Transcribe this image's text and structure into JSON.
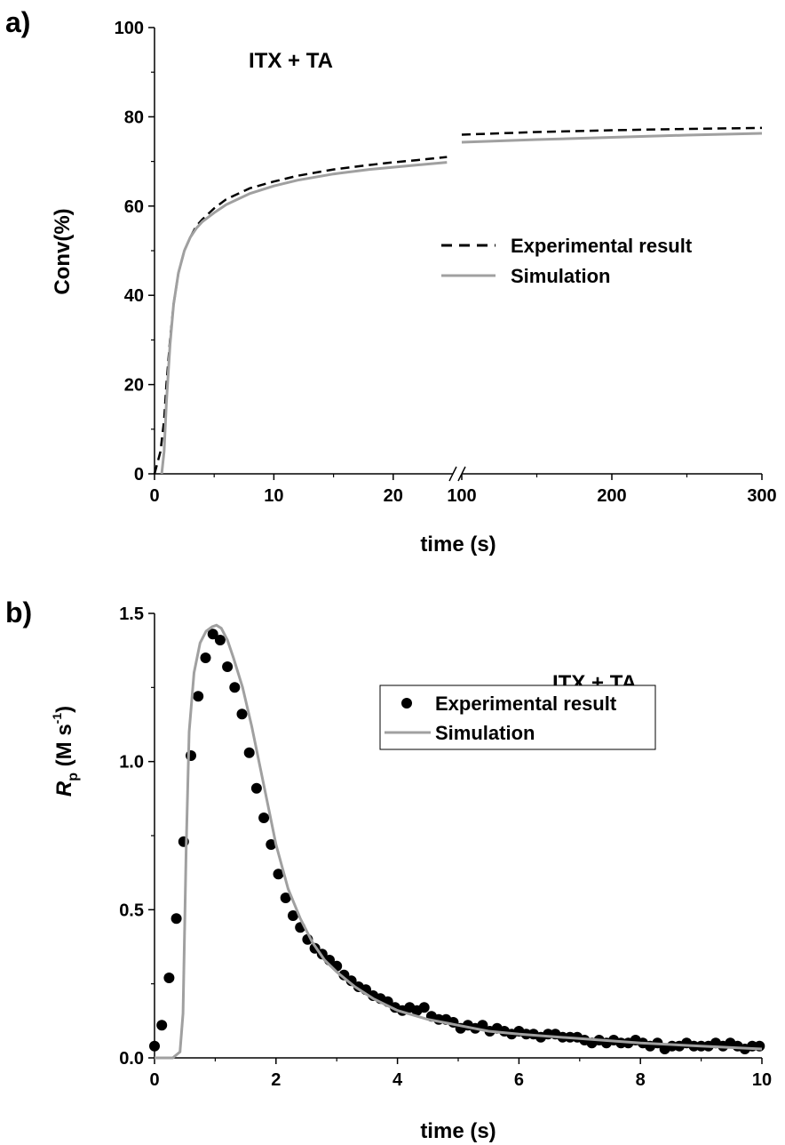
{
  "colors": {
    "experimental": "#000000",
    "simulation": "#a0a0a0",
    "axis": "#000000"
  },
  "chart_data": [
    {
      "panel_label": "a)",
      "type": "line",
      "annotation": "ITX + TA",
      "xlabel": "time (s)",
      "ylabel": "Conv(%)",
      "ylim": [
        0,
        100
      ],
      "yticks": [
        0,
        20,
        40,
        60,
        80,
        100
      ],
      "x_axis_segments": [
        {
          "range": [
            0,
            25
          ],
          "ticks": [
            0,
            10,
            20
          ]
        },
        {
          "range": [
            100,
            300
          ],
          "ticks": [
            100,
            200,
            300
          ]
        }
      ],
      "axis_break": true,
      "legend": {
        "placement": "right-middle",
        "entries": [
          "Experimental result",
          "Simulation"
        ]
      },
      "series": [
        {
          "name": "Experimental result",
          "style": "dashed",
          "x": [
            0,
            0.5,
            0.8,
            1.0,
            1.3,
            1.6,
            2.0,
            2.5,
            3.0,
            3.5,
            4.0,
            5.0,
            6.0,
            8.0,
            10.0,
            12.0,
            15.0,
            18.0,
            20.0,
            22.0,
            24.5,
            100,
            150,
            200,
            250,
            300
          ],
          "y": [
            0,
            5,
            12,
            20,
            30,
            38,
            45,
            50,
            53,
            55.5,
            57,
            59.5,
            61.5,
            64,
            65.5,
            66.8,
            68.2,
            69.2,
            69.8,
            70.3,
            71,
            76,
            76.6,
            77,
            77.3,
            77.5
          ]
        },
        {
          "name": "Simulation",
          "style": "solid",
          "x": [
            0.6,
            0.8,
            1.0,
            1.3,
            1.6,
            2.0,
            2.5,
            3.0,
            3.5,
            4.0,
            5.0,
            6.0,
            8.0,
            10.0,
            12.0,
            15.0,
            18.0,
            20.0,
            22.0,
            24.5,
            100,
            150,
            200,
            250,
            300
          ],
          "y": [
            0,
            5,
            16,
            29,
            38,
            45,
            50,
            53,
            55,
            56.5,
            58.5,
            60.3,
            62.8,
            64.5,
            65.8,
            67.2,
            68.2,
            68.7,
            69.2,
            69.8,
            74.3,
            74.9,
            75.4,
            75.9,
            76.3
          ]
        }
      ]
    },
    {
      "panel_label": "b)",
      "type": "scatter",
      "annotation": "ITX + TA",
      "xlabel": "time (s)",
      "ylabel_main": "R",
      "ylabel_sub": "p",
      "ylabel_unit": " (M s",
      "ylabel_sup": "-1",
      "ylabel_close": ")",
      "xlim": [
        0,
        10
      ],
      "ylim": [
        0,
        1.5
      ],
      "xticks": [
        0,
        2,
        4,
        6,
        8,
        10
      ],
      "yticks": [
        0.0,
        0.5,
        1.0,
        1.5
      ],
      "ytick_labels": [
        "0.0",
        "0.5",
        "1.0",
        "1.5"
      ],
      "legend": {
        "placement": "top-right",
        "entries": [
          "Experimental result",
          "Simulation"
        ]
      },
      "series": [
        {
          "name": "Experimental result",
          "style": "markers",
          "x": [
            0.0,
            0.12,
            0.24,
            0.36,
            0.48,
            0.6,
            0.72,
            0.84,
            0.96,
            1.08,
            1.2,
            1.32,
            1.44,
            1.56,
            1.68,
            1.8,
            1.92,
            2.04,
            2.16,
            2.28,
            2.4,
            2.52,
            2.64,
            2.76,
            2.88,
            3.0,
            3.12,
            3.24,
            3.36,
            3.48,
            3.6,
            3.72,
            3.84,
            3.96,
            4.08,
            4.2,
            4.32,
            4.44,
            4.56,
            4.68,
            4.8,
            4.92,
            5.04,
            5.16,
            5.28,
            5.4,
            5.52,
            5.64,
            5.76,
            5.88,
            6.0,
            6.12,
            6.24,
            6.36,
            6.48,
            6.6,
            6.72,
            6.84,
            6.96,
            7.08,
            7.2,
            7.32,
            7.44,
            7.56,
            7.68,
            7.8,
            7.92,
            8.04,
            8.16,
            8.28,
            8.4,
            8.52,
            8.64,
            8.76,
            8.88,
            9.0,
            9.12,
            9.24,
            9.36,
            9.48,
            9.6,
            9.72,
            9.84,
            9.96
          ],
          "y": [
            0.04,
            0.11,
            0.27,
            0.47,
            0.73,
            1.02,
            1.22,
            1.35,
            1.43,
            1.41,
            1.32,
            1.25,
            1.16,
            1.03,
            0.91,
            0.81,
            0.72,
            0.62,
            0.54,
            0.48,
            0.44,
            0.4,
            0.37,
            0.35,
            0.33,
            0.31,
            0.28,
            0.26,
            0.24,
            0.23,
            0.21,
            0.2,
            0.19,
            0.17,
            0.16,
            0.17,
            0.16,
            0.17,
            0.14,
            0.13,
            0.13,
            0.12,
            0.1,
            0.11,
            0.1,
            0.11,
            0.09,
            0.1,
            0.09,
            0.08,
            0.09,
            0.08,
            0.08,
            0.07,
            0.08,
            0.08,
            0.07,
            0.07,
            0.07,
            0.06,
            0.05,
            0.06,
            0.05,
            0.06,
            0.05,
            0.05,
            0.06,
            0.05,
            0.04,
            0.05,
            0.03,
            0.04,
            0.04,
            0.05,
            0.04,
            0.04,
            0.04,
            0.05,
            0.04,
            0.05,
            0.04,
            0.03,
            0.04,
            0.04
          ]
        },
        {
          "name": "Simulation",
          "style": "solid",
          "x": [
            0.0,
            0.3,
            0.42,
            0.47,
            0.52,
            0.57,
            0.65,
            0.75,
            0.85,
            0.95,
            1.02,
            1.1,
            1.2,
            1.3,
            1.45,
            1.6,
            1.75,
            1.9,
            2.0,
            2.2,
            2.4,
            2.6,
            2.8,
            3.0,
            3.3,
            3.6,
            4.0,
            4.5,
            5.0,
            5.5,
            6.0,
            7.0,
            8.0,
            9.0,
            10.0
          ],
          "y": [
            0.0,
            0.0,
            0.02,
            0.15,
            0.7,
            1.1,
            1.3,
            1.4,
            1.44,
            1.455,
            1.46,
            1.45,
            1.41,
            1.35,
            1.25,
            1.12,
            0.97,
            0.82,
            0.72,
            0.57,
            0.47,
            0.39,
            0.33,
            0.29,
            0.24,
            0.2,
            0.16,
            0.13,
            0.11,
            0.09,
            0.08,
            0.065,
            0.05,
            0.04,
            0.03
          ]
        }
      ]
    }
  ]
}
